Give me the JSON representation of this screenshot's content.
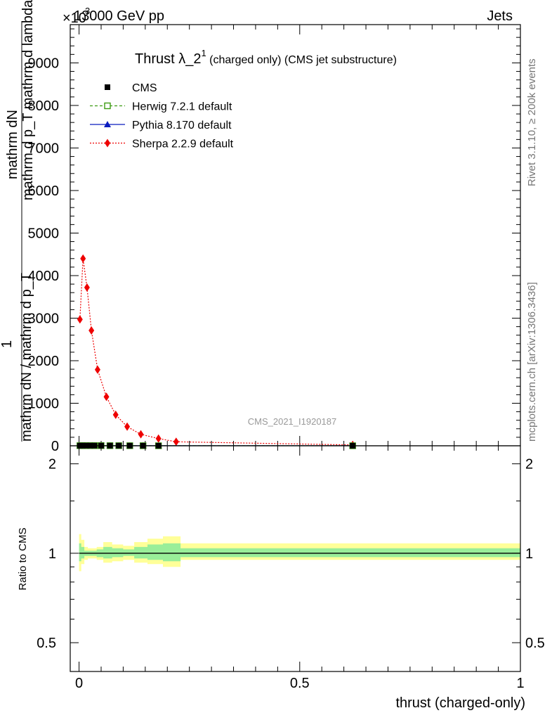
{
  "header": {
    "left": "13000 GeV pp",
    "right": "Jets",
    "exponent_label": "×10",
    "exponent_value": "3"
  },
  "side_labels": {
    "rivet": "Rivet 3.1.10, ≥ 200k events",
    "mcplots": "mcplots.cern.ch [arXiv:1306.3436]"
  },
  "chart_data": [
    {
      "type": "line",
      "title_main": "Thrust λ_2",
      "title_sup": "1",
      "title_rest": " (charged only) (CMS jet substructure)",
      "watermark": "CMS_2021_I1920187",
      "ylabel_numerator": "mathrm dN",
      "ylabel_denominator": "mathrm d p_T mathrm d lambda",
      "ylabel_top": "1",
      "ylabel_bottom": "mathrm dN / mathrm d p_T",
      "xlim": [
        -0.02,
        1.0
      ],
      "ylim": [
        0,
        9900
      ],
      "yticks": [
        0,
        1000,
        2000,
        3000,
        4000,
        5000,
        6000,
        7000,
        8000,
        9000
      ],
      "ytick_labels": [
        "0",
        "1000",
        "2000",
        "3000",
        "4000",
        "5000",
        "6000",
        "7000",
        "8000",
        "9000"
      ],
      "legend": [
        {
          "label": "CMS",
          "color": "#000000",
          "marker": "square",
          "line": "none"
        },
        {
          "label": "Herwig 7.2.1 default",
          "color": "#3d9b12",
          "marker": "open-square",
          "line": "dashed"
        },
        {
          "label": "Pythia 8.170 default",
          "color": "#0a1cbf",
          "marker": "triangle",
          "line": "solid"
        },
        {
          "label": "Sherpa 2.2.9 default",
          "color": "#ee0000",
          "marker": "diamond",
          "line": "dotted"
        }
      ],
      "series": [
        {
          "name": "CMS",
          "x": [
            0.002,
            0.008,
            0.016,
            0.025,
            0.035,
            0.05,
            0.07,
            0.09,
            0.115,
            0.145,
            0.18,
            0.62
          ],
          "values": [
            3,
            4,
            4,
            4,
            4,
            4,
            3,
            3,
            2,
            2,
            1,
            1
          ]
        },
        {
          "name": "Herwig 7.2.1 default",
          "x": [
            0.002,
            0.008,
            0.016,
            0.025,
            0.035,
            0.05,
            0.07,
            0.09,
            0.115,
            0.145,
            0.18,
            0.62
          ],
          "values": [
            3,
            4,
            4,
            4,
            4,
            4,
            3,
            3,
            2,
            2,
            1,
            1
          ]
        },
        {
          "name": "Pythia 8.170 default",
          "x": [
            0.002,
            0.008,
            0.016,
            0.025,
            0.035,
            0.05,
            0.07,
            0.09,
            0.115,
            0.145,
            0.18,
            0.62
          ],
          "values": [
            3,
            4,
            4,
            4,
            4,
            4,
            3,
            3,
            2,
            2,
            1,
            1
          ]
        },
        {
          "name": "Sherpa 2.2.9 default",
          "x": [
            0.002,
            0.009,
            0.018,
            0.028,
            0.042,
            0.062,
            0.083,
            0.109,
            0.14,
            0.18,
            0.22,
            0.62
          ],
          "values": [
            2970,
            4400,
            3720,
            2710,
            1790,
            1150,
            730,
            450,
            270,
            170,
            95,
            20
          ]
        }
      ]
    },
    {
      "type": "area",
      "ylabel": "Ratio to CMS",
      "xlabel": "thrust (charged-only)",
      "xlim": [
        -0.02,
        1.0
      ],
      "ylim": [
        0.4,
        2.3
      ],
      "log_y": true,
      "yticks": [
        0.5,
        1,
        2
      ],
      "ytick_labels": [
        "0.5",
        "1",
        "2"
      ],
      "xticks": [
        0,
        0.5,
        1
      ],
      "xtick_labels": [
        "0",
        "0.5",
        "1"
      ],
      "bands": {
        "edges": [
          0,
          0.005,
          0.012,
          0.02,
          0.03,
          0.04,
          0.055,
          0.075,
          0.1,
          0.125,
          0.155,
          0.19,
          0.23,
          1.0
        ],
        "outer_lo": [
          0.87,
          0.92,
          0.95,
          0.96,
          0.96,
          0.95,
          0.93,
          0.94,
          0.95,
          0.93,
          0.92,
          0.9,
          0.95
        ],
        "outer_hi": [
          1.16,
          1.11,
          1.05,
          1.04,
          1.04,
          1.05,
          1.09,
          1.07,
          1.06,
          1.09,
          1.12,
          1.14,
          1.08
        ],
        "inner_lo": [
          0.94,
          0.96,
          0.98,
          0.98,
          0.98,
          0.97,
          0.96,
          0.97,
          0.98,
          0.96,
          0.95,
          0.94,
          0.97
        ],
        "inner_hi": [
          1.08,
          1.05,
          1.02,
          1.02,
          1.02,
          1.03,
          1.05,
          1.04,
          1.03,
          1.05,
          1.07,
          1.08,
          1.04
        ]
      },
      "reference": 1.0,
      "colors": {
        "outer": "#ffff99",
        "inner": "#99ee99"
      }
    }
  ]
}
